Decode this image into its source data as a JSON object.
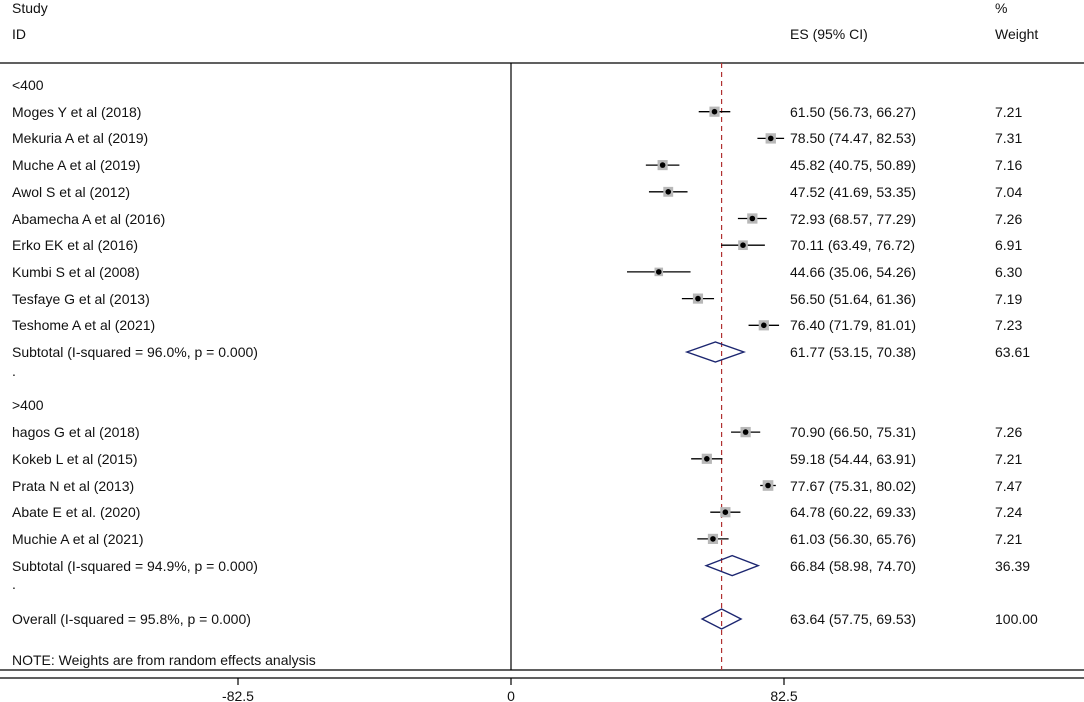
{
  "header": {
    "study_label": "Study",
    "id_label": "ID",
    "es_label": "ES (95% CI)",
    "pct_label": "%",
    "weight_label": "Weight"
  },
  "footer": {
    "note": "NOTE: Weights are from random effects analysis"
  },
  "chart_data": {
    "type": "forest",
    "title": "",
    "xlabel": "",
    "ylabel": "",
    "x_ticks": [
      -82.5,
      0,
      82.5
    ],
    "x_tick_labels": [
      "-82.5",
      "0",
      "82.5"
    ],
    "xlim": [
      -165,
      165
    ],
    "null_line": 0,
    "overall_line": 63.64,
    "groups": [
      {
        "label": "<400",
        "studies": [
          {
            "id": "Moges Y et al (2018)",
            "es": 61.5,
            "lo": 56.73,
            "hi": 66.27,
            "ci_text": "61.50 (56.73, 66.27)",
            "weight": "7.21"
          },
          {
            "id": "Mekuria A et al (2019)",
            "es": 78.5,
            "lo": 74.47,
            "hi": 82.53,
            "ci_text": "78.50 (74.47, 82.53)",
            "weight": "7.31"
          },
          {
            "id": "Muche A et al (2019)",
            "es": 45.82,
            "lo": 40.75,
            "hi": 50.89,
            "ci_text": "45.82 (40.75, 50.89)",
            "weight": "7.16"
          },
          {
            "id": "Awol S et al (2012)",
            "es": 47.52,
            "lo": 41.69,
            "hi": 53.35,
            "ci_text": "47.52 (41.69, 53.35)",
            "weight": "7.04"
          },
          {
            "id": "Abamecha A et al (2016)",
            "es": 72.93,
            "lo": 68.57,
            "hi": 77.29,
            "ci_text": "72.93 (68.57, 77.29)",
            "weight": "7.26"
          },
          {
            "id": "Erko EK et al (2016)",
            "es": 70.11,
            "lo": 63.49,
            "hi": 76.72,
            "ci_text": "70.11 (63.49, 76.72)",
            "weight": "6.91"
          },
          {
            "id": "Kumbi S  et al (2008)",
            "es": 44.66,
            "lo": 35.06,
            "hi": 54.26,
            "ci_text": "44.66 (35.06, 54.26)",
            "weight": "6.30"
          },
          {
            "id": "Tesfaye G et al (2013)",
            "es": 56.5,
            "lo": 51.64,
            "hi": 61.36,
            "ci_text": "56.50 (51.64, 61.36)",
            "weight": "7.19"
          },
          {
            "id": "Teshome A et al (2021)",
            "es": 76.4,
            "lo": 71.79,
            "hi": 81.01,
            "ci_text": "76.40 (71.79, 81.01)",
            "weight": "7.23"
          }
        ],
        "subtotal": {
          "label": "Subtotal  (I-squared = 96.0%, p = 0.000)",
          "es": 61.77,
          "lo": 53.15,
          "hi": 70.38,
          "ci_text": "61.77 (53.15, 70.38)",
          "weight": "63.61"
        }
      },
      {
        "label": ">400",
        "studies": [
          {
            "id": "hagos G et al (2018)",
            "es": 70.9,
            "lo": 66.5,
            "hi": 75.31,
            "ci_text": "70.90 (66.50, 75.31)",
            "weight": "7.26"
          },
          {
            "id": "Kokeb L et al (2015)",
            "es": 59.18,
            "lo": 54.44,
            "hi": 63.91,
            "ci_text": "59.18 (54.44, 63.91)",
            "weight": "7.21"
          },
          {
            "id": "Prata N et al (2013)",
            "es": 77.67,
            "lo": 75.31,
            "hi": 80.02,
            "ci_text": "77.67 (75.31, 80.02)",
            "weight": "7.47"
          },
          {
            "id": "Abate E et al. (2020)",
            "es": 64.78,
            "lo": 60.22,
            "hi": 69.33,
            "ci_text": "64.78 (60.22, 69.33)",
            "weight": "7.24"
          },
          {
            "id": "Muchie A et al (2021)",
            "es": 61.03,
            "lo": 56.3,
            "hi": 65.76,
            "ci_text": "61.03 (56.30, 65.76)",
            "weight": "7.21"
          }
        ],
        "subtotal": {
          "label": "Subtotal  (I-squared = 94.9%, p = 0.000)",
          "es": 66.84,
          "lo": 58.98,
          "hi": 74.7,
          "ci_text": "66.84 (58.98, 74.70)",
          "weight": "36.39"
        }
      }
    ],
    "overall": {
      "label": "Overall  (I-squared = 95.8%, p = 0.000)",
      "es": 63.64,
      "lo": 57.75,
      "hi": 69.53,
      "ci_text": "63.64 (57.75, 69.53)",
      "weight": "100.00"
    },
    "spacer_label": "."
  }
}
